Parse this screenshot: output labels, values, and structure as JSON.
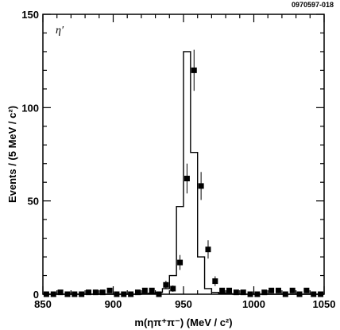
{
  "figure_id": "0970597-018",
  "chart_data": {
    "type": "scatter",
    "annotation": "η′",
    "xlabel": "m(ηπ⁺π⁻) (MeV / c²)",
    "ylabel": "Events / (5 MeV / c²)",
    "xlim": [
      850,
      1050
    ],
    "ylim": [
      0,
      150
    ],
    "x_ticks": [
      850,
      900,
      950,
      1000,
      1050
    ],
    "y_ticks": [
      0,
      50,
      100,
      150
    ],
    "grid": false,
    "legend": "none",
    "histogram": {
      "name": "",
      "bin_edges": [
        850,
        855,
        860,
        865,
        870,
        875,
        880,
        885,
        890,
        895,
        900,
        905,
        910,
        915,
        920,
        925,
        930,
        935,
        940,
        945,
        950,
        955,
        960,
        965,
        970,
        975,
        980,
        985,
        990,
        995,
        1000,
        1005,
        1010,
        1015,
        1020,
        1025,
        1030,
        1035,
        1040,
        1045,
        1050
      ],
      "counts": [
        0,
        0,
        0,
        0,
        0,
        0,
        0,
        0,
        0,
        0,
        0,
        0,
        0,
        0,
        0.3,
        0.5,
        1,
        3,
        10,
        47,
        130,
        76,
        20,
        3,
        1,
        0.5,
        0.3,
        0,
        0,
        0,
        0,
        0,
        0,
        0,
        0,
        0,
        0,
        0,
        0,
        0
      ]
    },
    "points": {
      "name": "",
      "x": [
        852.5,
        857.5,
        862.5,
        867.5,
        872.5,
        877.5,
        882.5,
        887.5,
        892.5,
        897.5,
        902.5,
        907.5,
        912.5,
        917.5,
        922.5,
        927.5,
        932.5,
        937.5,
        942.5,
        947.5,
        952.5,
        957.5,
        962.5,
        967.5,
        972.5,
        977.5,
        982.5,
        987.5,
        992.5,
        997.5,
        1002.5,
        1007.5,
        1012.5,
        1017.5,
        1022.5,
        1027.5,
        1032.5,
        1037.5,
        1042.5,
        1047.5
      ],
      "y": [
        0,
        0,
        1,
        0,
        0,
        0,
        1,
        1,
        1,
        2,
        0,
        0,
        0,
        1,
        2,
        2,
        0,
        5,
        3,
        17,
        62,
        120,
        58,
        24,
        7,
        2,
        2,
        1,
        1,
        0,
        0,
        1,
        2,
        2,
        0,
        2,
        0,
        2,
        0,
        0
      ],
      "yerr": [
        1,
        1,
        1,
        1,
        1,
        1,
        1,
        1,
        1,
        1.4,
        1,
        1,
        1,
        1,
        1.4,
        1.4,
        1,
        2.2,
        1.7,
        4,
        8,
        11,
        7.5,
        4.9,
        2.6,
        1.4,
        1.4,
        1,
        1,
        1,
        1,
        1,
        1.4,
        1.4,
        1,
        1.4,
        1,
        1.4,
        1,
        1
      ]
    }
  }
}
